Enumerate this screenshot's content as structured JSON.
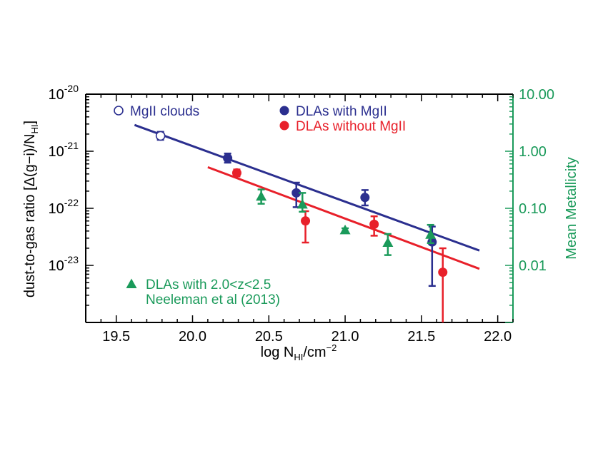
{
  "chart_data": {
    "type": "scatter",
    "title": "",
    "xlabel": "log N_HI/cm^-2",
    "ylabel": "dust-to-gas ratio [Δ(g−i)/N_HI]",
    "y2label": "Mean Metallicity",
    "xlim": [
      19.3,
      22.1
    ],
    "ylim_log10": [
      -24.0,
      -20.0
    ],
    "y2_log10_offset": 21.0,
    "y_scale": "log",
    "grid": false,
    "x_ticks": [
      "19.5",
      "20.0",
      "20.5",
      "21.0",
      "21.5",
      "22.0"
    ],
    "y_ticks": [
      {
        "base": "10",
        "exp": "-20"
      },
      {
        "base": "10",
        "exp": "-21"
      },
      {
        "base": "10",
        "exp": "-22"
      },
      {
        "base": "10",
        "exp": "-23"
      }
    ],
    "y2_ticks": [
      "10.00",
      "1.00",
      "0.10",
      "0.01"
    ],
    "colors": {
      "mgii_clouds": "#2b2f8f",
      "dlas_with_mgii": "#2b2f8f",
      "dlas_without_mgii": "#e8202a",
      "neeleman": "#1a9a5a",
      "axis": "#000000",
      "right_axis": "#1a9a5a"
    },
    "series": [
      {
        "name": "MgII clouds",
        "marker": "open-circle",
        "points": [
          {
            "x": 19.79,
            "y": -20.73,
            "err_lo": 0.07,
            "err_hi": 0.07
          }
        ]
      },
      {
        "name": "DLAs with MgII",
        "marker": "filled-circle",
        "points": [
          {
            "x": 20.23,
            "y": -21.12,
            "err_lo": 0.08,
            "err_hi": 0.08
          },
          {
            "x": 20.68,
            "y": -21.73,
            "err_lo": 0.25,
            "err_hi": 0.18
          },
          {
            "x": 21.13,
            "y": -21.81,
            "err_lo": 0.14,
            "err_hi": 0.13
          },
          {
            "x": 21.57,
            "y": -22.59,
            "err_lo": 0.77,
            "err_hi": 0.27
          }
        ]
      },
      {
        "name": "DLAs without MgII",
        "marker": "filled-circle",
        "points": [
          {
            "x": 20.29,
            "y": -21.38,
            "err_lo": 0.06,
            "err_hi": 0.06
          },
          {
            "x": 20.74,
            "y": -22.22,
            "err_lo": 0.38,
            "err_hi": 0.17
          },
          {
            "x": 21.19,
            "y": -22.28,
            "err_lo": 0.2,
            "err_hi": 0.14
          },
          {
            "x": 21.64,
            "y": -23.12,
            "err_lo": 0.9,
            "err_hi": 0.42
          }
        ]
      },
      {
        "name": "DLAs with 2.0<z<2.5",
        "marker": "filled-triangle",
        "points": [
          {
            "x": 20.45,
            "y": -21.79,
            "err_lo": 0.13,
            "err_hi": 0.12
          },
          {
            "x": 20.72,
            "y": -21.93,
            "err_lo": 0.13,
            "err_hi": 0.2
          },
          {
            "x": 21.0,
            "y": -22.38,
            "err_lo": 0.03,
            "err_hi": 0.03
          },
          {
            "x": 21.28,
            "y": -22.6,
            "err_lo": 0.22,
            "err_hi": 0.15
          },
          {
            "x": 21.56,
            "y": -22.46,
            "err_lo": 0.15,
            "err_hi": 0.17
          }
        ]
      }
    ],
    "fit_lines": [
      {
        "series": "DLAs with MgII",
        "x": [
          19.62,
          21.88
        ],
        "y": [
          -20.54,
          -22.74
        ]
      },
      {
        "series": "DLAs without MgII",
        "x": [
          20.1,
          21.88
        ],
        "y": [
          -21.28,
          -23.06
        ]
      }
    ],
    "legend": [
      {
        "label": "MgII clouds",
        "marker": "open-circle",
        "color_key": "mgii_clouds",
        "placement": "top-left"
      },
      {
        "label": "DLAs with MgII",
        "marker": "filled-circle",
        "color_key": "dlas_with_mgii",
        "placement": "top-center"
      },
      {
        "label": "DLAs without MgII",
        "marker": "filled-circle",
        "color_key": "dlas_without_mgii",
        "placement": "top-center"
      },
      {
        "label": "DLAs with 2.0<z<2.5",
        "marker": "filled-triangle",
        "color_key": "neeleman",
        "placement": "bottom-left"
      }
    ],
    "annotation": "Neeleman et al (2013)"
  }
}
